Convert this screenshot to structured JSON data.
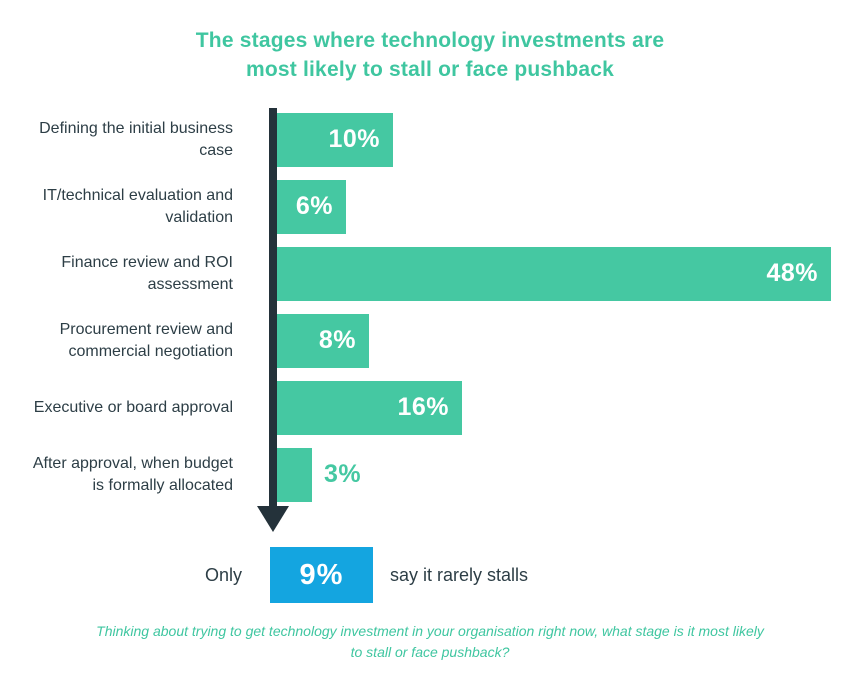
{
  "title": "The stages where technology investments are\nmost likely to stall or face pushback",
  "chart_data": {
    "type": "bar",
    "orientation": "horizontal",
    "title": "The stages where technology investments are most likely to stall or face pushback",
    "categories": [
      "Defining the initial business\ncase",
      "IT/technical evaluation and\nvalidation",
      "Finance review and ROI\nassessment",
      "Procurement review and\ncommercial negotiation",
      "Executive or board approval",
      "After approval, when budget\nis formally allocated"
    ],
    "values": [
      10,
      6,
      48,
      8,
      16,
      3
    ],
    "labels": [
      "10%",
      "6%",
      "48%",
      "8%",
      "16%",
      "3%"
    ],
    "xlim": [
      0,
      50
    ],
    "grid": false,
    "legend": false,
    "annotation": "Only 9% say it rarely stalls"
  },
  "summary": {
    "prefix": "Only",
    "value": "9%",
    "suffix": "say it rarely stalls"
  },
  "footnote": "Thinking about trying to get technology investment in your organisation right now, what stage is it most likely\nto stall or face pushback?",
  "colors": {
    "bar_green": "#45c8a2",
    "accent_green": "#3fc6a0",
    "summary_blue": "#14a5e0",
    "text_dark": "#2d3e46",
    "axis_dark": "#24323a",
    "value_text_white": "#ffffff"
  }
}
